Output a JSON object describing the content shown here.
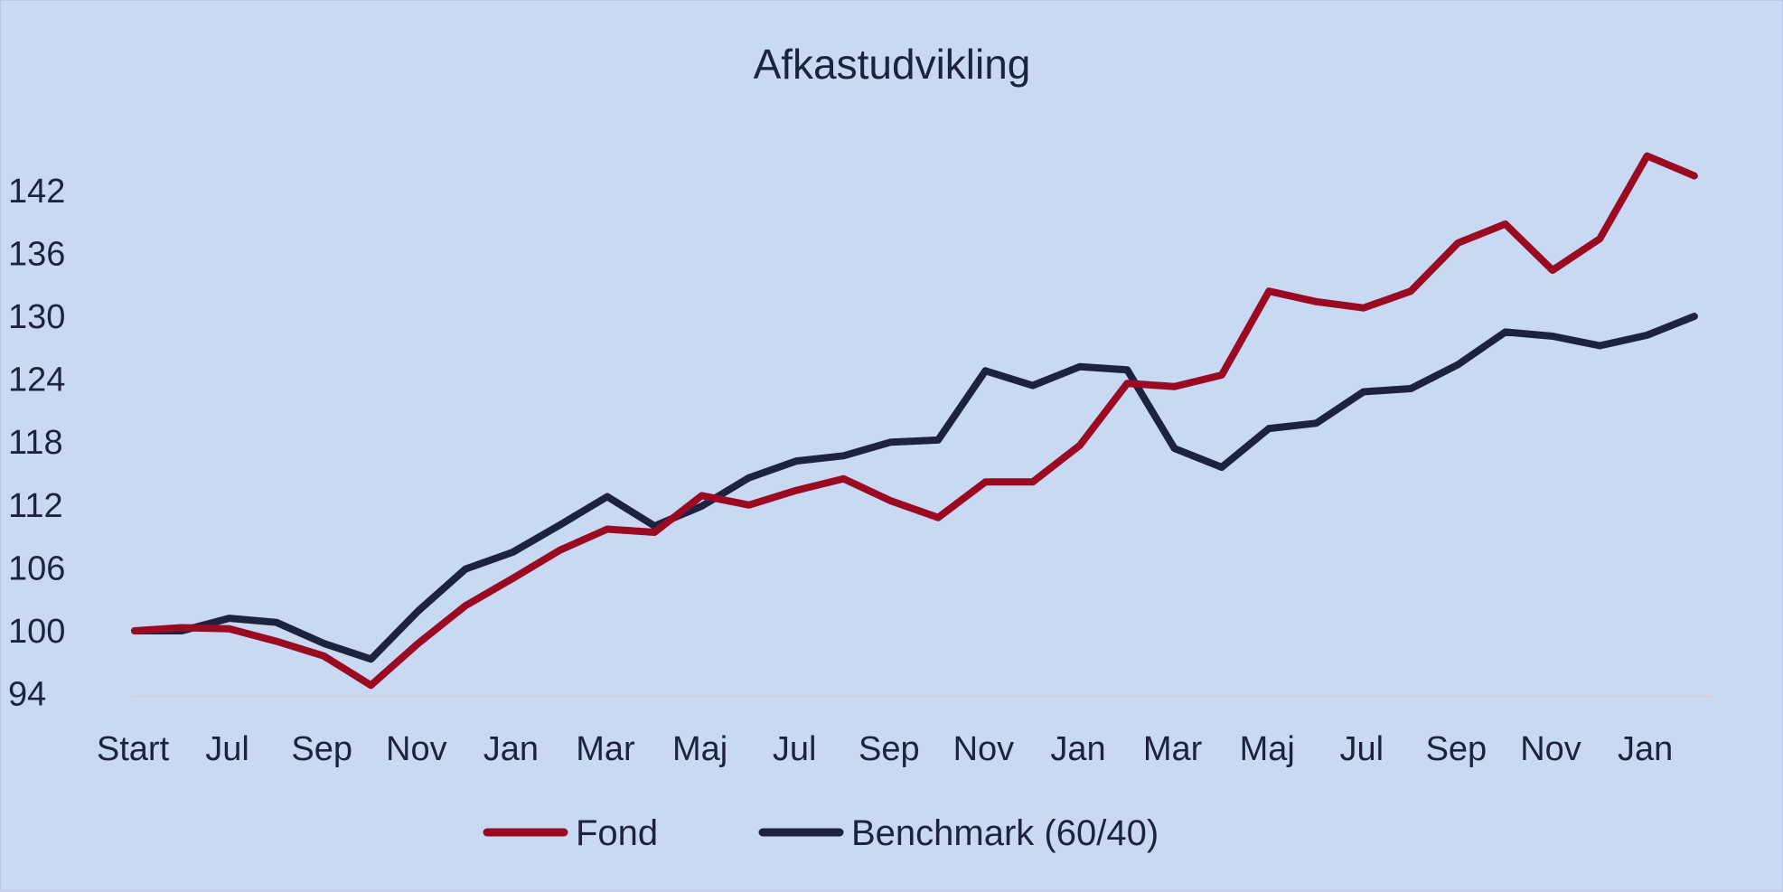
{
  "chart_data": {
    "type": "line",
    "title": "Afkastudvikling",
    "xlabel": "",
    "ylabel": "",
    "ylim": [
      94,
      148
    ],
    "yticks": [
      94,
      100,
      106,
      112,
      118,
      124,
      130,
      136,
      142
    ],
    "x_labels": [
      {
        "i": 0,
        "label": "Start"
      },
      {
        "i": 2,
        "label": "Jul"
      },
      {
        "i": 4,
        "label": "Sep"
      },
      {
        "i": 6,
        "label": "Nov"
      },
      {
        "i": 8,
        "label": "Jan"
      },
      {
        "i": 10,
        "label": "Mar"
      },
      {
        "i": 12,
        "label": "Maj"
      },
      {
        "i": 14,
        "label": "Jul"
      },
      {
        "i": 16,
        "label": "Sep"
      },
      {
        "i": 18,
        "label": "Nov"
      },
      {
        "i": 20,
        "label": "Jan"
      },
      {
        "i": 22,
        "label": "Mar"
      },
      {
        "i": 24,
        "label": "Maj"
      },
      {
        "i": 26,
        "label": "Jul"
      },
      {
        "i": 28,
        "label": "Sep"
      },
      {
        "i": 30,
        "label": "Nov"
      },
      {
        "i": 32,
        "label": "Jan"
      }
    ],
    "point_count": 34,
    "grid": false,
    "legend": "bottom",
    "series": [
      {
        "name": "Fond",
        "color": "#9b0a23",
        "values": [
          100,
          100.3,
          100.2,
          99.0,
          97.6,
          94.8,
          98.8,
          102.4,
          105.0,
          107.7,
          109.7,
          109.4,
          112.9,
          112.0,
          113.4,
          114.5,
          112.4,
          110.8,
          114.2,
          114.2,
          117.7,
          123.6,
          123.3,
          124.4,
          132.4,
          131.4,
          130.8,
          132.4,
          137.0,
          138.8,
          134.4,
          137.4,
          145.3,
          143.4
        ]
      },
      {
        "name": "Benchmark (60/40)",
        "color": "#1c2340",
        "values": [
          100,
          100.0,
          101.2,
          100.8,
          98.8,
          97.3,
          101.9,
          105.9,
          107.5,
          110.1,
          112.8,
          110.0,
          111.9,
          114.6,
          116.2,
          116.7,
          118.0,
          118.2,
          124.8,
          123.4,
          125.2,
          124.9,
          117.4,
          115.6,
          119.3,
          119.8,
          122.8,
          123.1,
          125.4,
          128.5,
          128.1,
          127.2,
          128.2,
          130.0
        ]
      }
    ]
  }
}
